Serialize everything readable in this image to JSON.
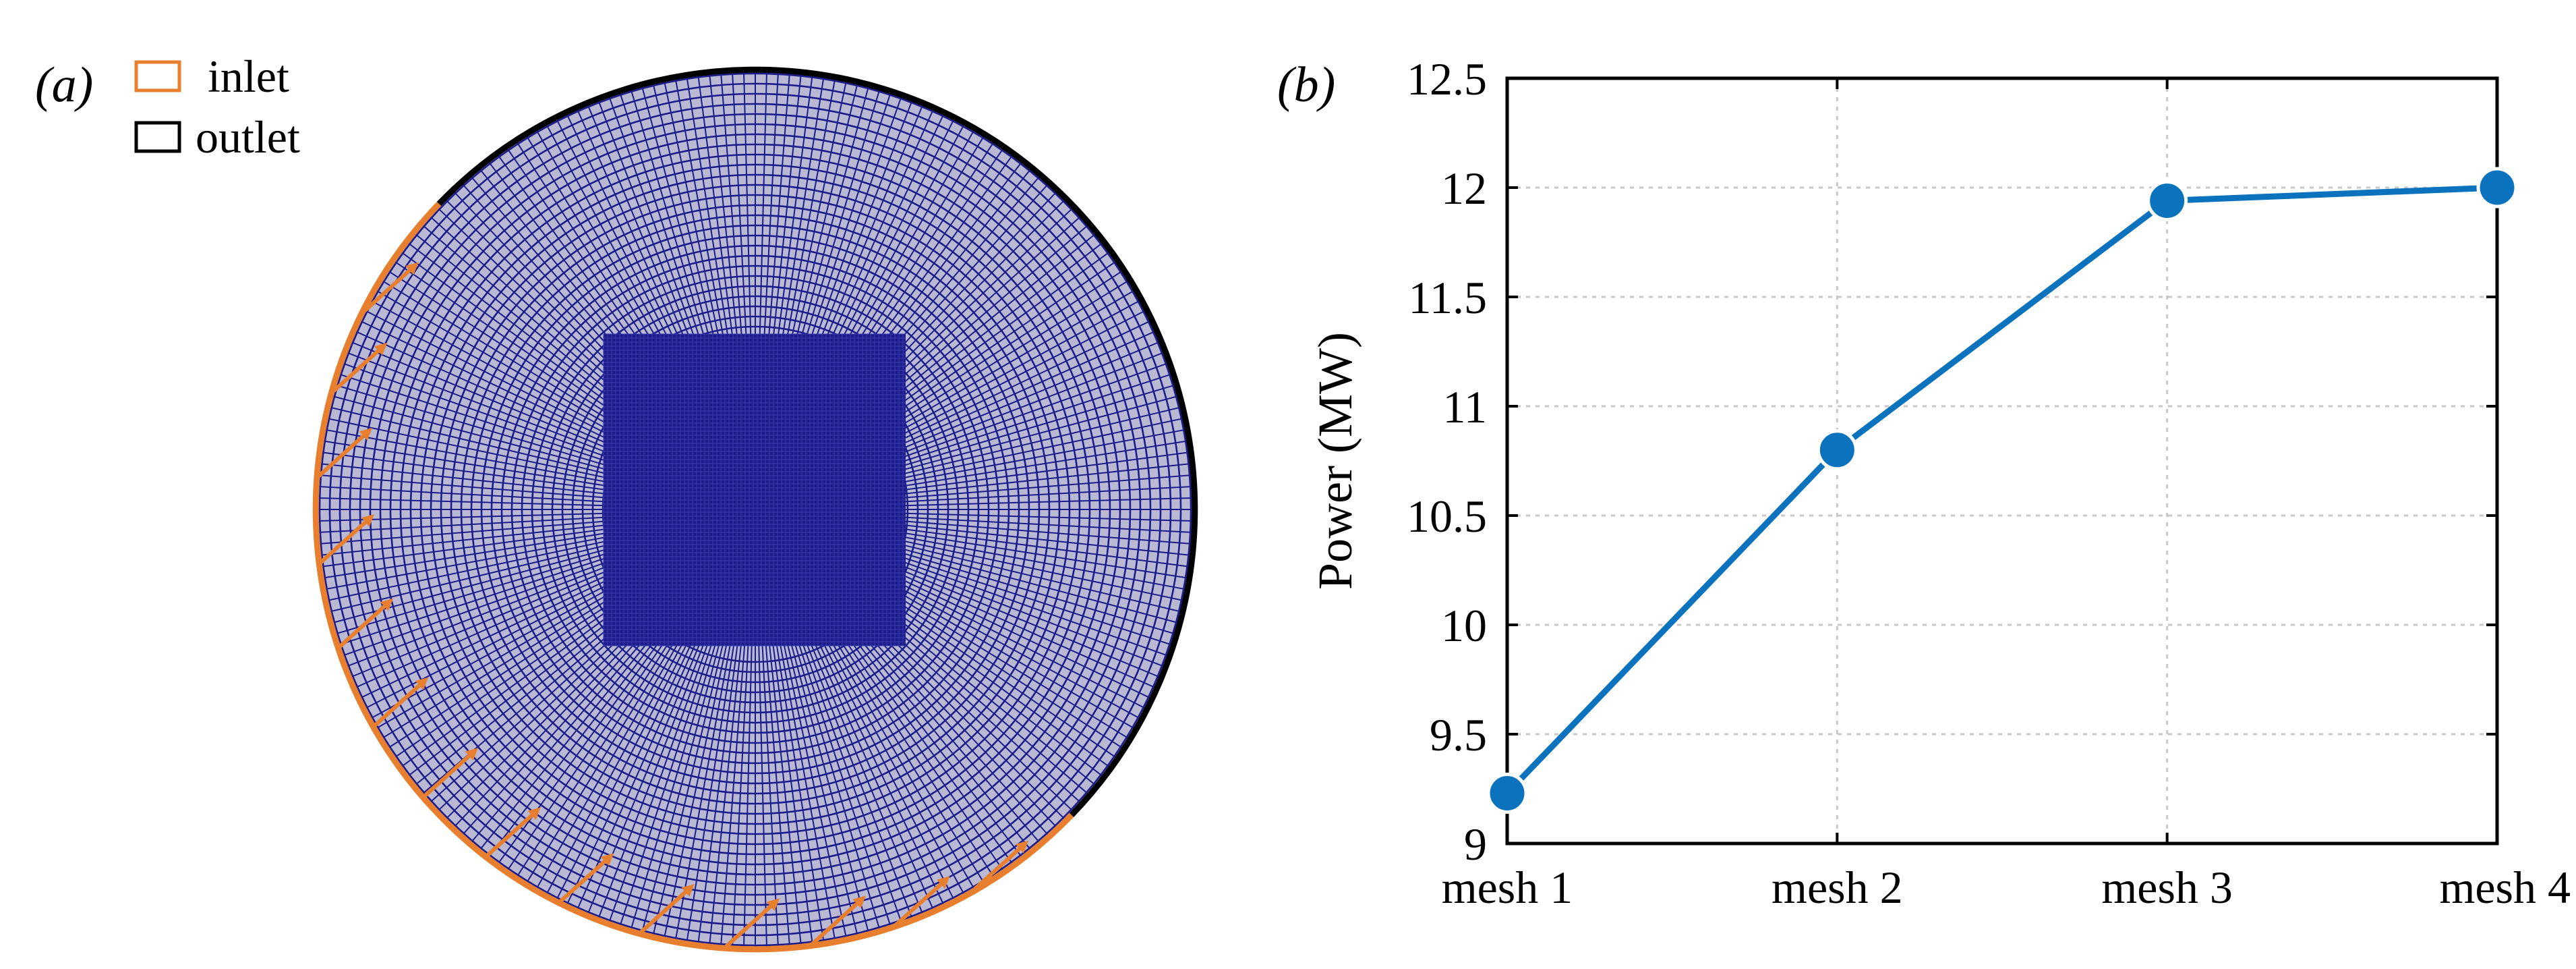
{
  "panel_a": {
    "label": "(a)",
    "legend": [
      {
        "label": "inlet",
        "color": "#e87f2e"
      },
      {
        "label": "outlet",
        "color": "#000000"
      }
    ],
    "colors": {
      "mesh": "#1c1c8c",
      "mesh_bg": "#b9b9d4",
      "inlet": "#e87f2e",
      "outlet": "#000000"
    }
  },
  "panel_b": {
    "label": "(b)"
  },
  "chart_data": {
    "type": "line",
    "title": "",
    "xlabel": "",
    "ylabel": "Power (MW)",
    "categories": [
      "mesh 1",
      "mesh 2",
      "mesh 3",
      "mesh 4"
    ],
    "series": [
      {
        "name": "Power",
        "values": [
          9.23,
          10.8,
          11.94,
          12.0
        ],
        "color": "#0b72bd"
      }
    ],
    "ylim": [
      9,
      12.5
    ],
    "yticks": [
      9,
      9.5,
      10,
      10.5,
      11,
      11.5,
      12,
      12.5
    ],
    "ytick_labels": [
      "9",
      "9.5",
      "10",
      "10.5",
      "11",
      "11.5",
      "12",
      "12.5"
    ],
    "grid": true
  }
}
